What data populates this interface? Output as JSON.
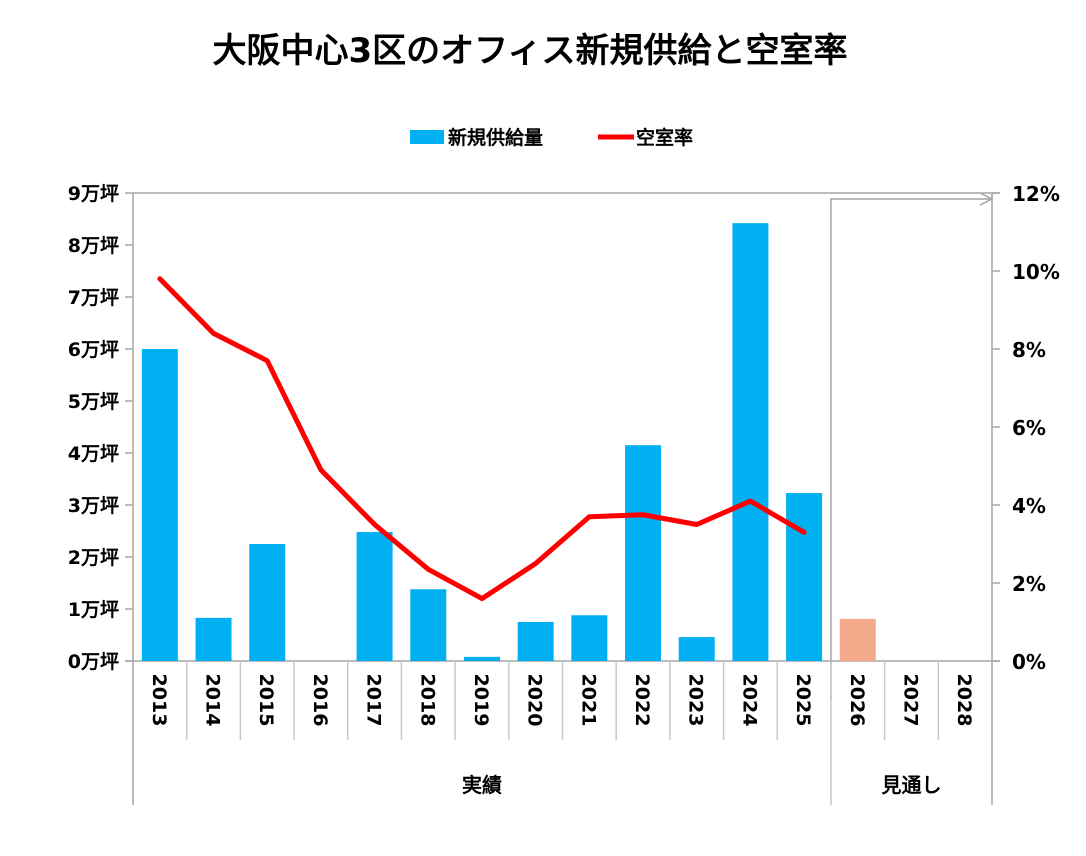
{
  "chart_data": {
    "type": "bar+line",
    "title": "大阪中心3区のオフィス新規供給と空室率",
    "categories": [
      "2013",
      "2014",
      "2015",
      "2016",
      "2017",
      "2018",
      "2019",
      "2020",
      "2021",
      "2022",
      "2023",
      "2024",
      "2025",
      "2026",
      "2027",
      "2028"
    ],
    "groups": [
      {
        "label": "実績",
        "from": "2013",
        "to": "2025"
      },
      {
        "label": "見通し",
        "from": "2026",
        "to": "2028"
      }
    ],
    "series": [
      {
        "name": "新規供給量",
        "type": "bar",
        "axis": "left",
        "color": "#00B0F0",
        "forecast_color": "#F4A98A",
        "values": [
          6.0,
          0.83,
          2.25,
          0,
          2.48,
          1.38,
          0.08,
          0.75,
          0.88,
          4.15,
          0.46,
          8.42,
          3.23,
          0.81,
          null,
          null
        ]
      },
      {
        "name": "空室率",
        "type": "line",
        "axis": "right",
        "color": "#FF0000",
        "values": [
          9.8,
          8.4,
          7.7,
          4.9,
          3.5,
          2.35,
          1.6,
          2.5,
          3.7,
          3.75,
          3.5,
          4.1,
          3.3,
          null,
          null,
          null
        ]
      }
    ],
    "y_left": {
      "range": [
        0,
        9
      ],
      "ticks": [
        "0万坪",
        "1万坪",
        "2万坪",
        "3万坪",
        "4万坪",
        "5万坪",
        "6万坪",
        "7万坪",
        "8万坪",
        "9万坪"
      ]
    },
    "y_right": {
      "range": [
        0,
        12
      ],
      "ticks": [
        "0%",
        "2%",
        "4%",
        "6%",
        "8%",
        "10%",
        "12%"
      ]
    },
    "legend_placement": "top",
    "grid": false
  }
}
